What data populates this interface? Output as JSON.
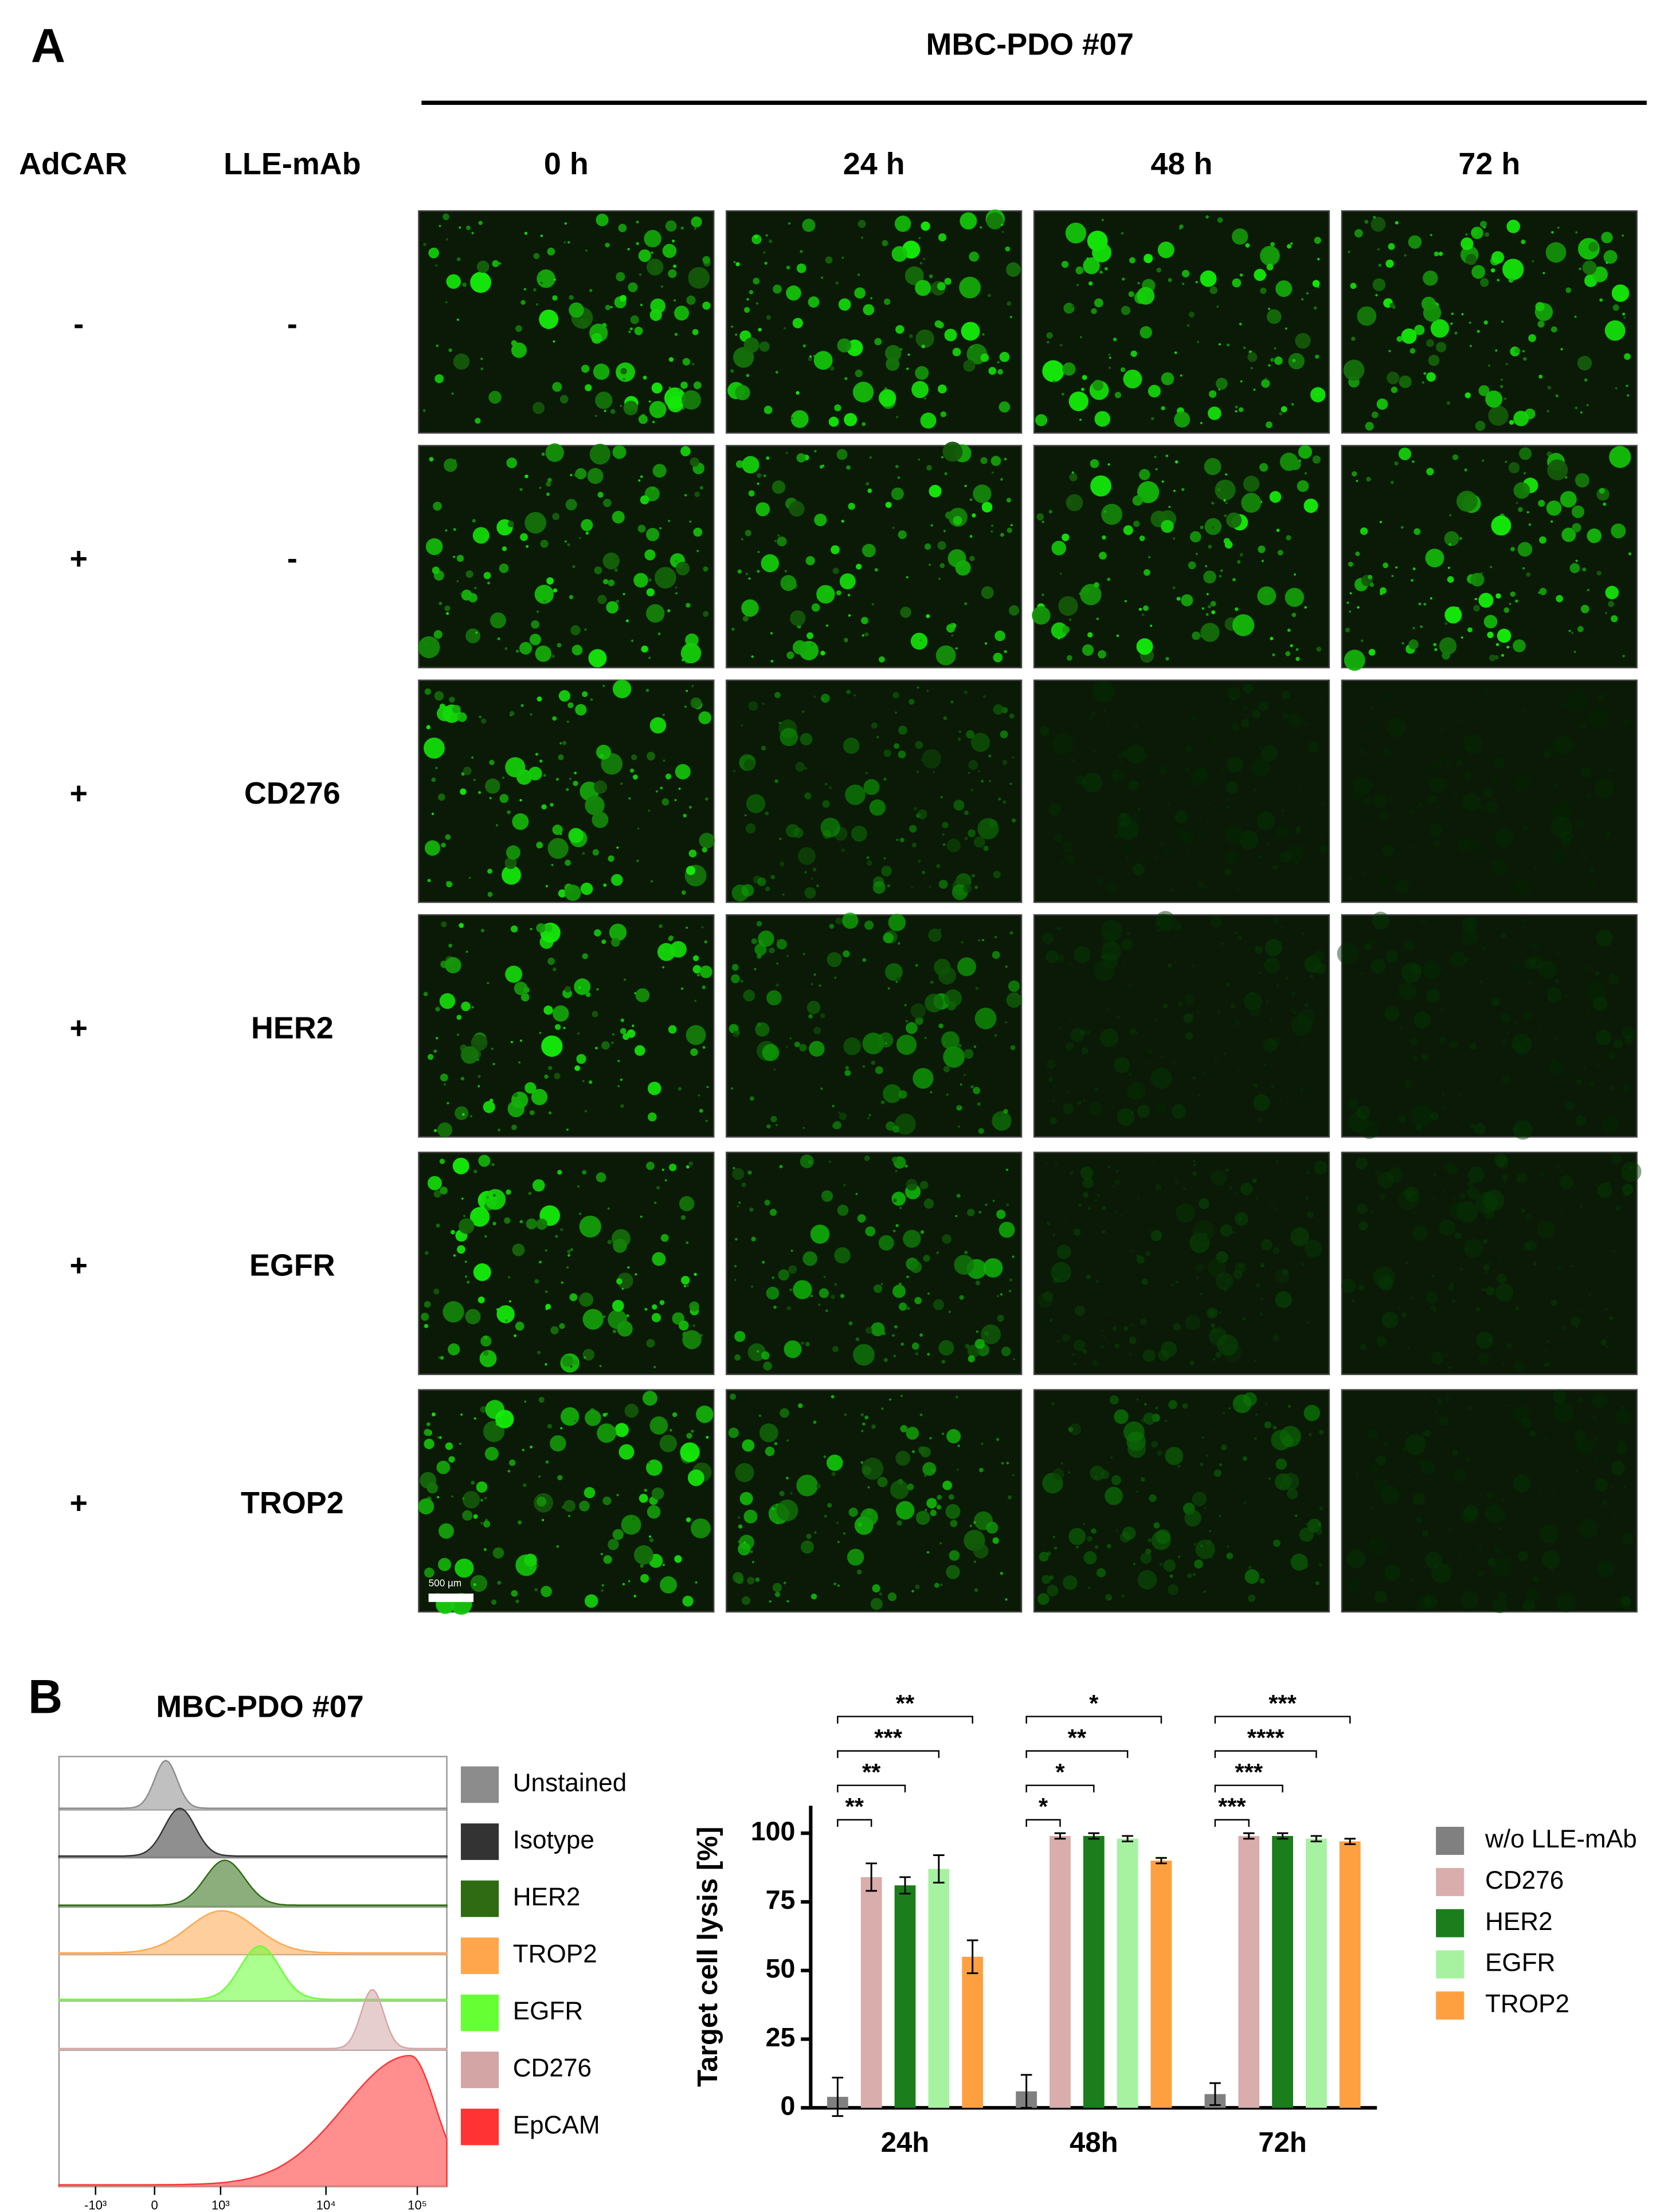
{
  "panel_a": {
    "label": "A",
    "title": "MBC-PDO #07",
    "column_headers": [
      "AdCAR",
      "LLE-mAb"
    ],
    "time_points": [
      "0 h",
      "24 h",
      "48 h",
      "72 h"
    ],
    "rows": [
      {
        "adcar": "-",
        "mab": "-"
      },
      {
        "adcar": "+",
        "mab": "-"
      },
      {
        "adcar": "+",
        "mab": "CD276"
      },
      {
        "adcar": "+",
        "mab": "HER2"
      },
      {
        "adcar": "+",
        "mab": "EGFR"
      },
      {
        "adcar": "+",
        "mab": "TROP2"
      }
    ],
    "scale_bar": "500 µm"
  },
  "panel_b": {
    "label": "B",
    "flow": {
      "title": "MBC-PDO #07",
      "legend": [
        {
          "name": "Unstained",
          "color": "#8c8c8c"
        },
        {
          "name": "Isotype",
          "color": "#333333"
        },
        {
          "name": "HER2",
          "color": "#2e6b12"
        },
        {
          "name": "TROP2",
          "color": "#ffa64d"
        },
        {
          "name": "EGFR",
          "color": "#66ff33"
        },
        {
          "name": "CD276",
          "color": "#d4a5a5"
        },
        {
          "name": "EpCAM",
          "color": "#ff3333"
        }
      ],
      "xticks": [
        "-10³",
        "0",
        "10³",
        "10⁴",
        "10⁵"
      ]
    }
  },
  "chart_data": {
    "type": "bar",
    "y_label": "Target cell lysis [%]",
    "categories": [
      "24h",
      "48h",
      "72h"
    ],
    "series": [
      {
        "name": "w/o LLE-mAb",
        "color": "#808080",
        "values": [
          4,
          6,
          5
        ],
        "errors": [
          7,
          6,
          4
        ]
      },
      {
        "name": "CD276",
        "color": "#d8adab",
        "values": [
          84,
          99,
          99
        ],
        "errors": [
          5,
          1,
          1
        ]
      },
      {
        "name": "HER2",
        "color": "#1b7d1b",
        "values": [
          81,
          99,
          99
        ],
        "errors": [
          3,
          1,
          1
        ]
      },
      {
        "name": "EGFR",
        "color": "#a6f2a0",
        "values": [
          87,
          98,
          98
        ],
        "errors": [
          5,
          1,
          1
        ]
      },
      {
        "name": "TROP2",
        "color": "#ffa040",
        "values": [
          55,
          90,
          97
        ],
        "errors": [
          6,
          1,
          1
        ]
      }
    ],
    "ylim": [
      0,
      110
    ],
    "yticks": [
      0,
      25,
      50,
      75,
      100
    ],
    "significance": [
      [
        "**",
        "**",
        "***",
        "**"
      ],
      [
        "*",
        "*",
        "**",
        "*"
      ],
      [
        "***",
        "***",
        "****",
        "***"
      ]
    ]
  }
}
